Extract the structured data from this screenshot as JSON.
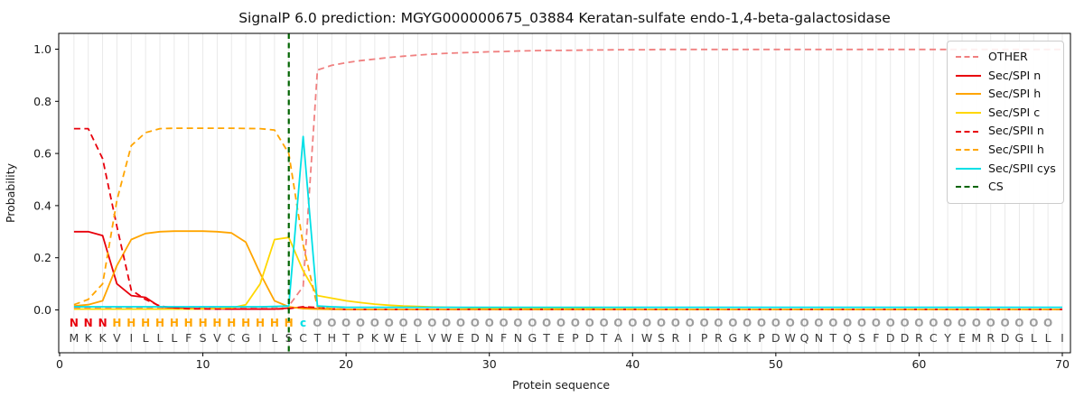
{
  "title": "SignalP 6.0 prediction: MGYG000000675_03884 Keratan-sulfate endo-1,4-beta-galactosidase",
  "chart_data": {
    "type": "line",
    "title": "SignalP 6.0 prediction: MGYG000000675_03884 Keratan-sulfate endo-1,4-beta-galactosidase",
    "xlabel": "Protein sequence",
    "ylabel": "Probability",
    "xlim": [
      0,
      70.6
    ],
    "ylim": [
      -0.17,
      1.06
    ],
    "grid": "vertical line at every residue position, light gray",
    "legend_position": "upper right",
    "x_axis": {
      "label": "Protein sequence",
      "ticks": [
        "0",
        "10",
        "20",
        "30",
        "40",
        "50",
        "60",
        "70"
      ],
      "tick_values": [
        0,
        10,
        20,
        30,
        40,
        50,
        60,
        70
      ]
    },
    "y_axis": {
      "label": "Probability",
      "ticks": [
        "0.0",
        "0.2",
        "0.4",
        "0.6",
        "0.8",
        "1.0"
      ],
      "tick_values": [
        0.0,
        0.2,
        0.4,
        0.6,
        0.8,
        1.0
      ]
    },
    "x_positions": "residue index 1..70",
    "series": [
      {
        "name": "OTHER",
        "color": "#f08080",
        "style": "dashed",
        "values": [
          0.008,
          0.008,
          0.008,
          0.008,
          0.008,
          0.008,
          0.008,
          0.008,
          0.008,
          0.008,
          0.008,
          0.008,
          0.008,
          0.009,
          0.01,
          0.015,
          0.09,
          0.92,
          0.938,
          0.948,
          0.956,
          0.962,
          0.968,
          0.973,
          0.977,
          0.981,
          0.984,
          0.986,
          0.988,
          0.99,
          0.991,
          0.993,
          0.994,
          0.995,
          0.995,
          0.996,
          0.997,
          0.997,
          0.998,
          0.998,
          0.998,
          0.999,
          0.999,
          0.999,
          0.999,
          0.999,
          0.999,
          0.999,
          0.999,
          0.999,
          0.999,
          0.999,
          0.999,
          0.999,
          0.999,
          0.999,
          0.999,
          0.999,
          0.999,
          0.999,
          0.999,
          0.999,
          0.999,
          0.999,
          0.999,
          0.999,
          0.999,
          0.999,
          0.999,
          0.999
        ]
      },
      {
        "name": "Sec/SPI n",
        "color": "#e8000b",
        "style": "solid",
        "values": [
          0.3,
          0.3,
          0.285,
          0.1,
          0.055,
          0.048,
          0.012,
          0.007,
          0.005,
          0.004,
          0.004,
          0.003,
          0.003,
          0.003,
          0.003,
          0.007,
          0.01,
          0.004,
          0.003,
          0.002,
          0.002,
          0.002,
          0.002,
          0.002,
          0.002,
          0.002,
          0.002,
          0.002,
          0.002,
          0.002,
          0.002,
          0.002,
          0.002,
          0.002,
          0.002,
          0.002,
          0.002,
          0.002,
          0.002,
          0.002,
          0.002,
          0.002,
          0.002,
          0.002,
          0.002,
          0.002,
          0.002,
          0.002,
          0.002,
          0.002,
          0.002,
          0.002,
          0.002,
          0.002,
          0.002,
          0.002,
          0.002,
          0.002,
          0.002,
          0.002,
          0.002,
          0.002,
          0.002,
          0.002,
          0.002,
          0.002,
          0.002,
          0.002,
          0.002,
          0.002
        ]
      },
      {
        "name": "Sec/SPI h",
        "color": "#ffa500",
        "style": "solid",
        "values": [
          0.015,
          0.02,
          0.035,
          0.17,
          0.27,
          0.293,
          0.3,
          0.302,
          0.302,
          0.302,
          0.3,
          0.295,
          0.26,
          0.14,
          0.035,
          0.012,
          0.005,
          0.003,
          0.002,
          0.002,
          0.002,
          0.002,
          0.002,
          0.002,
          0.002,
          0.002,
          0.002,
          0.002,
          0.002,
          0.002,
          0.002,
          0.002,
          0.002,
          0.002,
          0.002,
          0.002,
          0.002,
          0.002,
          0.002,
          0.002,
          0.002,
          0.002,
          0.002,
          0.002,
          0.002,
          0.002,
          0.002,
          0.002,
          0.002,
          0.002,
          0.002,
          0.002,
          0.002,
          0.002,
          0.002,
          0.002,
          0.002,
          0.002,
          0.002,
          0.002,
          0.002,
          0.002,
          0.002,
          0.002,
          0.002,
          0.002,
          0.002,
          0.002,
          0.002,
          0.002
        ]
      },
      {
        "name": "Sec/SPI c",
        "color": "#ffd700",
        "style": "solid",
        "values": [
          0.003,
          0.003,
          0.003,
          0.003,
          0.003,
          0.003,
          0.003,
          0.003,
          0.003,
          0.004,
          0.005,
          0.008,
          0.02,
          0.1,
          0.27,
          0.278,
          0.15,
          0.055,
          0.045,
          0.035,
          0.028,
          0.022,
          0.018,
          0.015,
          0.013,
          0.011,
          0.01,
          0.009,
          0.008,
          0.007,
          0.006,
          0.006,
          0.005,
          0.005,
          0.004,
          0.004,
          0.004,
          0.003,
          0.003,
          0.003,
          0.002,
          0.002,
          0.002,
          0.002,
          0.002,
          0.002,
          0.002,
          0.002,
          0.002,
          0.002,
          0.002,
          0.002,
          0.002,
          0.002,
          0.002,
          0.002,
          0.002,
          0.002,
          0.002,
          0.002,
          0.002,
          0.002,
          0.002,
          0.002,
          0.002,
          0.002,
          0.002,
          0.002,
          0.002,
          0.002
        ]
      },
      {
        "name": "Sec/SPII n",
        "color": "#e8000b",
        "style": "dashed",
        "values": [
          0.695,
          0.695,
          0.58,
          0.32,
          0.076,
          0.04,
          0.015,
          0.008,
          0.005,
          0.004,
          0.003,
          0.003,
          0.003,
          0.003,
          0.003,
          0.005,
          0.012,
          0.009,
          0.004,
          0.002,
          0.002,
          0.002,
          0.002,
          0.002,
          0.002,
          0.002,
          0.002,
          0.002,
          0.002,
          0.002,
          0.002,
          0.002,
          0.002,
          0.002,
          0.002,
          0.002,
          0.002,
          0.002,
          0.002,
          0.002,
          0.002,
          0.002,
          0.002,
          0.002,
          0.002,
          0.002,
          0.002,
          0.002,
          0.002,
          0.002,
          0.002,
          0.002,
          0.002,
          0.002,
          0.002,
          0.002,
          0.002,
          0.002,
          0.002,
          0.002,
          0.002,
          0.002,
          0.002,
          0.002,
          0.002,
          0.002,
          0.002,
          0.002,
          0.002,
          0.002
        ]
      },
      {
        "name": "Sec/SPII h",
        "color": "#ffa500",
        "style": "dashed",
        "values": [
          0.02,
          0.04,
          0.1,
          0.42,
          0.63,
          0.68,
          0.695,
          0.697,
          0.697,
          0.697,
          0.697,
          0.697,
          0.696,
          0.695,
          0.69,
          0.6,
          0.25,
          0.012,
          0.005,
          0.002,
          0.002,
          0.002,
          0.002,
          0.002,
          0.002,
          0.002,
          0.002,
          0.002,
          0.002,
          0.002,
          0.002,
          0.002,
          0.002,
          0.002,
          0.002,
          0.002,
          0.002,
          0.002,
          0.002,
          0.002,
          0.002,
          0.002,
          0.002,
          0.002,
          0.002,
          0.002,
          0.002,
          0.002,
          0.002,
          0.002,
          0.002,
          0.002,
          0.002,
          0.002,
          0.002,
          0.002,
          0.002,
          0.002,
          0.002,
          0.002,
          0.002,
          0.002,
          0.002,
          0.002,
          0.002,
          0.002,
          0.002,
          0.002,
          0.002,
          0.002
        ]
      },
      {
        "name": "Sec/SPII cys",
        "color": "#00e0e6",
        "style": "solid",
        "values": [
          0.012,
          0.012,
          0.012,
          0.012,
          0.012,
          0.012,
          0.012,
          0.012,
          0.012,
          0.012,
          0.012,
          0.012,
          0.012,
          0.012,
          0.013,
          0.015,
          0.665,
          0.015,
          0.012,
          0.01,
          0.01,
          0.01,
          0.01,
          0.01,
          0.01,
          0.01,
          0.01,
          0.01,
          0.01,
          0.01,
          0.01,
          0.01,
          0.01,
          0.01,
          0.01,
          0.01,
          0.01,
          0.01,
          0.01,
          0.01,
          0.01,
          0.01,
          0.01,
          0.01,
          0.01,
          0.01,
          0.01,
          0.01,
          0.01,
          0.01,
          0.01,
          0.01,
          0.01,
          0.01,
          0.01,
          0.01,
          0.01,
          0.01,
          0.01,
          0.01,
          0.01,
          0.01,
          0.01,
          0.01,
          0.01,
          0.01,
          0.01,
          0.01,
          0.01,
          0.01
        ]
      },
      {
        "name": "CS",
        "color": "#006400",
        "style": "dashed-vertical",
        "cs_position": 16,
        "values": []
      }
    ],
    "cs_line": {
      "label": "CS",
      "x": 16,
      "color": "#006400",
      "style": "dashed"
    },
    "sequence": "MKKVILLLFSVCGILSCTHTPKWELVWEDNFNGTEPDTAIWSRIPRGKPDWQNTQSFDDRCYEMRDGLLI",
    "region_labels": "NNNHHHHHHHHHHHHHcOOOOOOOOOOOOOOOOOOOOOOOOOOOOOOOOOOOOOOOOOOOOOOOOOOOO",
    "region_colors": {
      "N": "#e8000b",
      "H": "#ffa500",
      "c": "#00e0e6",
      "O": "#9e9e9e"
    },
    "residue_color": "#3a3a3a",
    "grid_color": "#e9e9e9",
    "spine_color": "#000000"
  }
}
